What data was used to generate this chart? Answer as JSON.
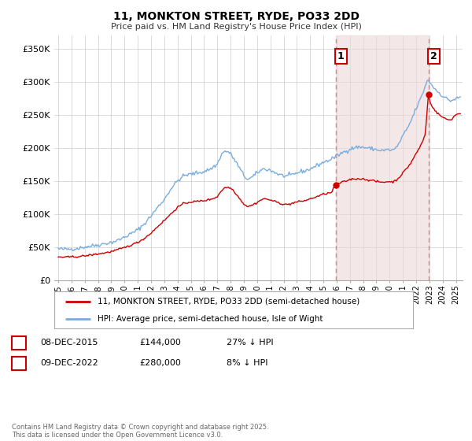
{
  "title": "11, MONKTON STREET, RYDE, PO33 2DD",
  "subtitle": "Price paid vs. HM Land Registry's House Price Index (HPI)",
  "legend_label_red": "11, MONKTON STREET, RYDE, PO33 2DD (semi-detached house)",
  "legend_label_blue": "HPI: Average price, semi-detached house, Isle of Wight",
  "ylabel_ticks": [
    "£0",
    "£50K",
    "£100K",
    "£150K",
    "£200K",
    "£250K",
    "£300K",
    "£350K"
  ],
  "ytick_values": [
    0,
    50000,
    100000,
    150000,
    200000,
    250000,
    300000,
    350000
  ],
  "ylim": [
    0,
    370000
  ],
  "xlim_start": 1994.7,
  "xlim_end": 2025.5,
  "xtick_years": [
    1995,
    1996,
    1997,
    1998,
    1999,
    2000,
    2001,
    2002,
    2003,
    2004,
    2005,
    2006,
    2007,
    2008,
    2009,
    2010,
    2011,
    2012,
    2013,
    2014,
    2015,
    2016,
    2017,
    2018,
    2019,
    2020,
    2021,
    2022,
    2023,
    2024,
    2025
  ],
  "red_color": "#cc0000",
  "blue_color": "#7aaddd",
  "dashed_color": "#dd8888",
  "shading_color": "#edd8d8",
  "marker1_date": 2015.92,
  "marker1_value": 144000,
  "marker2_date": 2022.92,
  "marker2_value": 280000,
  "footnote": "Contains HM Land Registry data © Crown copyright and database right 2025.\nThis data is licensed under the Open Government Licence v3.0.",
  "table_row1": [
    "1",
    "08-DEC-2015",
    "£144,000",
    "27% ↓ HPI"
  ],
  "table_row2": [
    "2",
    "09-DEC-2022",
    "£280,000",
    "8% ↓ HPI"
  ],
  "background_color": "#ffffff",
  "grid_color": "#cccccc",
  "hpi_anchors": [
    [
      1995.0,
      47000
    ],
    [
      1995.5,
      46500
    ],
    [
      1996.0,
      47000
    ],
    [
      1996.5,
      48000
    ],
    [
      1997.0,
      50000
    ],
    [
      1997.5,
      51500
    ],
    [
      1998.0,
      53000
    ],
    [
      1998.5,
      55000
    ],
    [
      1999.0,
      57000
    ],
    [
      1999.5,
      60000
    ],
    [
      2000.0,
      65000
    ],
    [
      2000.5,
      70000
    ],
    [
      2001.0,
      76000
    ],
    [
      2001.5,
      85000
    ],
    [
      2002.0,
      97000
    ],
    [
      2002.5,
      110000
    ],
    [
      2003.0,
      122000
    ],
    [
      2003.5,
      138000
    ],
    [
      2004.0,
      150000
    ],
    [
      2004.5,
      158000
    ],
    [
      2005.0,
      160000
    ],
    [
      2005.5,
      162000
    ],
    [
      2006.0,
      164000
    ],
    [
      2006.5,
      168000
    ],
    [
      2007.0,
      175000
    ],
    [
      2007.3,
      190000
    ],
    [
      2007.6,
      195000
    ],
    [
      2007.9,
      193000
    ],
    [
      2008.2,
      185000
    ],
    [
      2008.5,
      175000
    ],
    [
      2008.8,
      165000
    ],
    [
      2009.0,
      158000
    ],
    [
      2009.3,
      152000
    ],
    [
      2009.6,
      155000
    ],
    [
      2009.9,
      160000
    ],
    [
      2010.2,
      165000
    ],
    [
      2010.5,
      168000
    ],
    [
      2010.8,
      167000
    ],
    [
      2011.0,
      166000
    ],
    [
      2011.3,
      163000
    ],
    [
      2011.6,
      160000
    ],
    [
      2011.9,
      158000
    ],
    [
      2012.2,
      157000
    ],
    [
      2012.5,
      158000
    ],
    [
      2012.8,
      160000
    ],
    [
      2013.0,
      162000
    ],
    [
      2013.3,
      164000
    ],
    [
      2013.6,
      165000
    ],
    [
      2013.9,
      167000
    ],
    [
      2014.2,
      170000
    ],
    [
      2014.5,
      173000
    ],
    [
      2014.8,
      176000
    ],
    [
      2015.0,
      178000
    ],
    [
      2015.3,
      180000
    ],
    [
      2015.6,
      183000
    ],
    [
      2015.9,
      186000
    ],
    [
      2016.2,
      190000
    ],
    [
      2016.5,
      193000
    ],
    [
      2016.8,
      196000
    ],
    [
      2017.0,
      198000
    ],
    [
      2017.3,
      200000
    ],
    [
      2017.6,
      201000
    ],
    [
      2017.9,
      201000
    ],
    [
      2018.2,
      200000
    ],
    [
      2018.5,
      199000
    ],
    [
      2018.8,
      198000
    ],
    [
      2019.0,
      197000
    ],
    [
      2019.3,
      196000
    ],
    [
      2019.6,
      196000
    ],
    [
      2019.9,
      197000
    ],
    [
      2020.2,
      196000
    ],
    [
      2020.5,
      200000
    ],
    [
      2020.8,
      210000
    ],
    [
      2021.0,
      218000
    ],
    [
      2021.3,
      228000
    ],
    [
      2021.6,
      240000
    ],
    [
      2021.9,
      255000
    ],
    [
      2022.2,
      268000
    ],
    [
      2022.5,
      282000
    ],
    [
      2022.7,
      295000
    ],
    [
      2022.9,
      303000
    ],
    [
      2023.0,
      300000
    ],
    [
      2023.2,
      294000
    ],
    [
      2023.5,
      287000
    ],
    [
      2023.8,
      282000
    ],
    [
      2024.0,
      278000
    ],
    [
      2024.3,
      274000
    ],
    [
      2024.6,
      271000
    ],
    [
      2024.9,
      273000
    ],
    [
      2025.0,
      274000
    ],
    [
      2025.3,
      276000
    ]
  ],
  "red_anchors": [
    [
      1995.0,
      35000
    ],
    [
      1995.5,
      34500
    ],
    [
      1996.0,
      35000
    ],
    [
      1996.5,
      35500
    ],
    [
      1997.0,
      36500
    ],
    [
      1997.5,
      38000
    ],
    [
      1998.0,
      39500
    ],
    [
      1998.5,
      41000
    ],
    [
      1999.0,
      43000
    ],
    [
      1999.5,
      46000
    ],
    [
      2000.0,
      49000
    ],
    [
      2000.5,
      53000
    ],
    [
      2001.0,
      57000
    ],
    [
      2001.5,
      63000
    ],
    [
      2002.0,
      71000
    ],
    [
      2002.5,
      81000
    ],
    [
      2003.0,
      90000
    ],
    [
      2003.5,
      100000
    ],
    [
      2004.0,
      110000
    ],
    [
      2004.5,
      116000
    ],
    [
      2005.0,
      118000
    ],
    [
      2005.5,
      119000
    ],
    [
      2006.0,
      120000
    ],
    [
      2006.5,
      122000
    ],
    [
      2007.0,
      126000
    ],
    [
      2007.3,
      135000
    ],
    [
      2007.6,
      140000
    ],
    [
      2007.9,
      140000
    ],
    [
      2008.2,
      136000
    ],
    [
      2008.5,
      128000
    ],
    [
      2008.8,
      120000
    ],
    [
      2009.0,
      115000
    ],
    [
      2009.3,
      111000
    ],
    [
      2009.6,
      113000
    ],
    [
      2009.9,
      116000
    ],
    [
      2010.2,
      120000
    ],
    [
      2010.5,
      123000
    ],
    [
      2010.8,
      122000
    ],
    [
      2011.0,
      121000
    ],
    [
      2011.3,
      119000
    ],
    [
      2011.6,
      117000
    ],
    [
      2011.9,
      115000
    ],
    [
      2012.2,
      114000
    ],
    [
      2012.5,
      115000
    ],
    [
      2012.8,
      117000
    ],
    [
      2013.0,
      118000
    ],
    [
      2013.3,
      119000
    ],
    [
      2013.6,
      120000
    ],
    [
      2013.9,
      122000
    ],
    [
      2014.2,
      124000
    ],
    [
      2014.5,
      126000
    ],
    [
      2014.8,
      128000
    ],
    [
      2015.0,
      130000
    ],
    [
      2015.3,
      131000
    ],
    [
      2015.6,
      132000
    ],
    [
      2015.92,
      144000
    ],
    [
      2016.0,
      145000
    ],
    [
      2016.3,
      147000
    ],
    [
      2016.6,
      149000
    ],
    [
      2016.9,
      151000
    ],
    [
      2017.0,
      152000
    ],
    [
      2017.3,
      153000
    ],
    [
      2017.6,
      153000
    ],
    [
      2017.9,
      153000
    ],
    [
      2018.2,
      152000
    ],
    [
      2018.5,
      151000
    ],
    [
      2018.8,
      150000
    ],
    [
      2019.0,
      149000
    ],
    [
      2019.3,
      148000
    ],
    [
      2019.6,
      148000
    ],
    [
      2019.9,
      149000
    ],
    [
      2020.2,
      148000
    ],
    [
      2020.5,
      151000
    ],
    [
      2020.8,
      157000
    ],
    [
      2021.0,
      162000
    ],
    [
      2021.3,
      169000
    ],
    [
      2021.6,
      177000
    ],
    [
      2021.9,
      188000
    ],
    [
      2022.2,
      198000
    ],
    [
      2022.5,
      210000
    ],
    [
      2022.7,
      222000
    ],
    [
      2022.92,
      280000
    ],
    [
      2023.0,
      272000
    ],
    [
      2023.2,
      263000
    ],
    [
      2023.5,
      254000
    ],
    [
      2023.8,
      249000
    ],
    [
      2024.0,
      246000
    ],
    [
      2024.3,
      243000
    ],
    [
      2024.6,
      242000
    ],
    [
      2024.9,
      248000
    ],
    [
      2025.0,
      250000
    ],
    [
      2025.3,
      252000
    ]
  ]
}
